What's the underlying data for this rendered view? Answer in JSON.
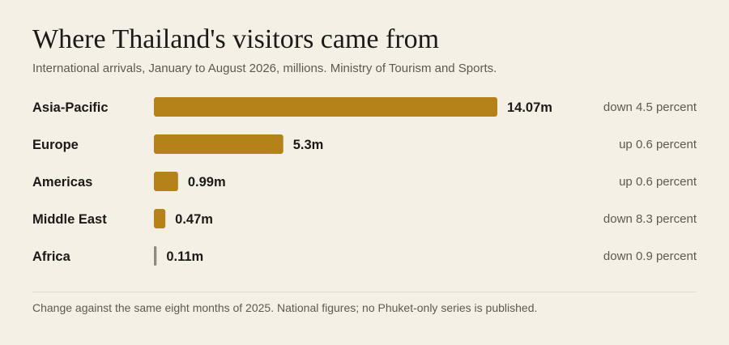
{
  "title": "Where Thailand's visitors came from",
  "subtitle": "International arrivals, January to August 2026, millions. Ministry of Tourism and Sports.",
  "footnote": "Change against the same eight months of 2025. National figures; no Phuket-only series is published.",
  "colors": {
    "bar": "#b5821a",
    "small_bar": "#8f8a83",
    "background": "#f5f0e6"
  },
  "chart_data": {
    "type": "bar",
    "orientation": "horizontal",
    "categories": [
      "Asia-Pacific",
      "Europe",
      "Americas",
      "Middle East",
      "Africa"
    ],
    "values": [
      14.07,
      5.3,
      0.99,
      0.47,
      0.11
    ],
    "value_labels": [
      "14.07m",
      "5.3m",
      "0.99m",
      "0.47m",
      "0.11m"
    ],
    "changes": [
      "down 4.5 percent",
      "up 0.6 percent",
      "up 0.6 percent",
      "down 8.3 percent",
      "down 0.9 percent"
    ],
    "xlim": [
      0,
      14.07
    ],
    "grid": false
  }
}
